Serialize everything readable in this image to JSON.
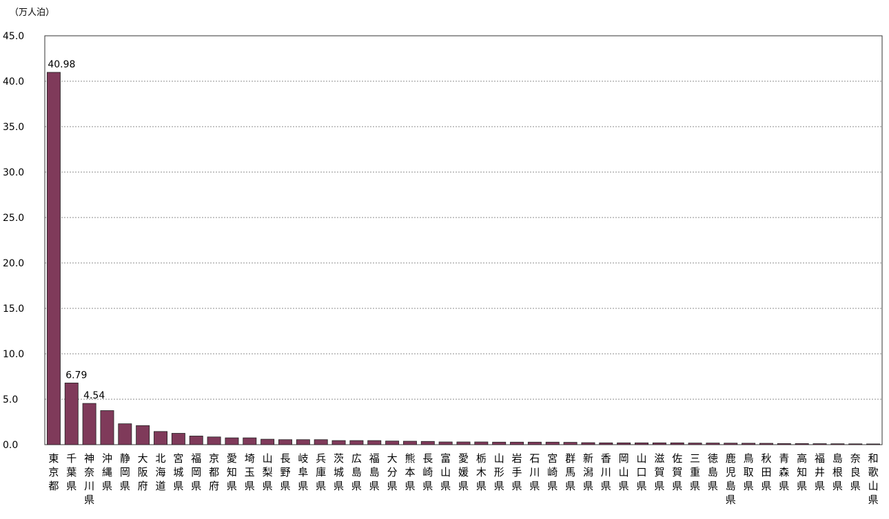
{
  "chart_data": {
    "type": "bar",
    "unit_label": "（万人泊）",
    "ylim": [
      0,
      45
    ],
    "yticks": [
      "0.0",
      "5.0",
      "10.0",
      "15.0",
      "20.0",
      "25.0",
      "30.0",
      "35.0",
      "40.0",
      "45.0"
    ],
    "grid": true,
    "bar_color": "#7f3a5a",
    "categories": [
      "東京都",
      "千葉県",
      "神奈川県",
      "沖縄県",
      "静岡県",
      "大阪府",
      "北海道",
      "宮城県",
      "福岡県",
      "京都府",
      "愛知県",
      "埼玉県",
      "山梨県",
      "長野県",
      "岐阜県",
      "兵庫県",
      "茨城県",
      "広島県",
      "福島県",
      "大分県",
      "熊本県",
      "長崎県",
      "富山県",
      "愛媛県",
      "栃木県",
      "山形県",
      "岩手県",
      "石川県",
      "宮崎県",
      "群馬県",
      "新潟県",
      "香川県",
      "岡山県",
      "山口県",
      "滋賀県",
      "佐賀県",
      "三重県",
      "徳島県",
      "鹿児島県",
      "鳥取県",
      "秋田県",
      "青森県",
      "高知県",
      "福井県",
      "島根県",
      "奈良県",
      "和歌山県"
    ],
    "values": [
      40.98,
      6.79,
      4.54,
      3.75,
      2.3,
      2.1,
      1.45,
      1.25,
      0.95,
      0.85,
      0.75,
      0.75,
      0.6,
      0.55,
      0.55,
      0.55,
      0.45,
      0.45,
      0.45,
      0.4,
      0.38,
      0.36,
      0.3,
      0.3,
      0.3,
      0.28,
      0.28,
      0.28,
      0.28,
      0.26,
      0.22,
      0.2,
      0.2,
      0.2,
      0.2,
      0.2,
      0.18,
      0.18,
      0.17,
      0.16,
      0.15,
      0.12,
      0.12,
      0.11,
      0.1,
      0.09,
      0.08
    ],
    "data_labels": [
      {
        "index": 0,
        "text": "40.98"
      },
      {
        "index": 1,
        "text": "6.79"
      },
      {
        "index": 2,
        "text": "4.54"
      }
    ]
  }
}
